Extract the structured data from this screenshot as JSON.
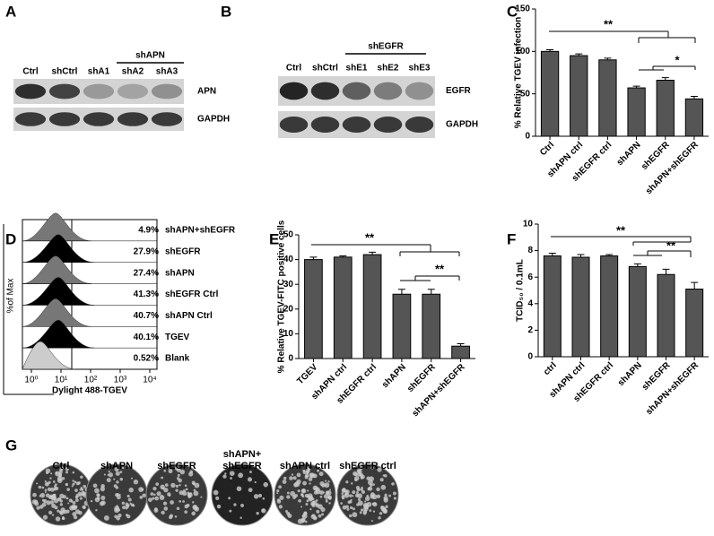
{
  "panel_labels": [
    "A",
    "B",
    "C",
    "D",
    "E",
    "F",
    "G"
  ],
  "blot_a": {
    "group": "shAPN",
    "lanes": [
      "Ctrl",
      "shCtrl",
      "shA1",
      "shA2",
      "shA3"
    ],
    "rows": [
      "APN",
      "GAPDH"
    ]
  },
  "blot_b": {
    "group": "shEGFR",
    "lanes": [
      "Ctrl",
      "shCtrl",
      "shE1",
      "shE2",
      "shE3"
    ],
    "rows": [
      "EGFR",
      "GAPDH"
    ]
  },
  "flow": {
    "y_label": "%of Max",
    "x_label": "Dylight 488-TGEV",
    "xticks": [
      "10⁰",
      "10¹",
      "10²",
      "10³",
      "10⁴"
    ],
    "rows": [
      {
        "percent": "4.9%",
        "name": "shAPN+shEGFR"
      },
      {
        "percent": "27.9%",
        "name": "shEGFR"
      },
      {
        "percent": "27.4%",
        "name": "shAPN"
      },
      {
        "percent": "41.3%",
        "name": "shEGFR Ctrl"
      },
      {
        "percent": "40.7%",
        "name": "shAPN Ctrl"
      },
      {
        "percent": "40.1%",
        "name": "TGEV"
      },
      {
        "percent": "0.52%",
        "name": "Blank"
      }
    ]
  },
  "chart_data": [
    {
      "type": "bar",
      "y_label": "% Relative TGEV infection",
      "categories": [
        "Ctrl",
        "shAPN ctrl",
        "shEGFR ctrl",
        "shAPN",
        "shEGFR",
        "shAPN+shEGFR"
      ],
      "values": [
        100,
        95,
        90,
        57,
        66,
        44
      ],
      "errors": [
        2,
        2,
        2,
        2,
        3,
        3
      ],
      "color": "#555555",
      "ylim": [
        0,
        150
      ],
      "yticks": [
        0,
        50,
        100,
        150
      ],
      "annotations": [
        "**",
        "*"
      ]
    },
    {
      "type": "bar",
      "y_label": "% Relative TGEV-FITC positive cells",
      "categories": [
        "TGEV",
        "shAPN ctrl",
        "shEGFR ctrl",
        "shAPN",
        "shEGFR",
        "shAPN+shEGFR"
      ],
      "values": [
        40,
        41,
        42,
        26,
        26,
        5
      ],
      "errors": [
        1,
        0.5,
        1,
        2,
        2,
        1
      ],
      "color": "#555555",
      "ylim": [
        0,
        50
      ],
      "yticks": [
        0,
        10,
        20,
        30,
        40,
        50
      ],
      "annotations": [
        "**",
        "**"
      ]
    },
    {
      "type": "bar",
      "y_label": "TCID₅₀ / 0.1mL",
      "categories": [
        "ctrl",
        "shAPN ctrl",
        "shEGFR ctrl",
        "shAPN",
        "shEGFR",
        "shAPN+shEGFR"
      ],
      "values": [
        7.6,
        7.5,
        7.6,
        6.8,
        6.2,
        5.1
      ],
      "errors": [
        0.2,
        0.2,
        0.1,
        0.2,
        0.4,
        0.5
      ],
      "color": "#555555",
      "ylim": [
        0,
        10
      ],
      "yticks": [
        0,
        2,
        4,
        6,
        8,
        10
      ],
      "annotations": [
        "**",
        "**"
      ]
    }
  ],
  "plaques": {
    "labels": [
      "Ctrl",
      "shAPN",
      "shEGFR",
      "shAPN+\nshEGFR",
      "shAPN ctrl",
      "shEGFR ctrl"
    ]
  }
}
